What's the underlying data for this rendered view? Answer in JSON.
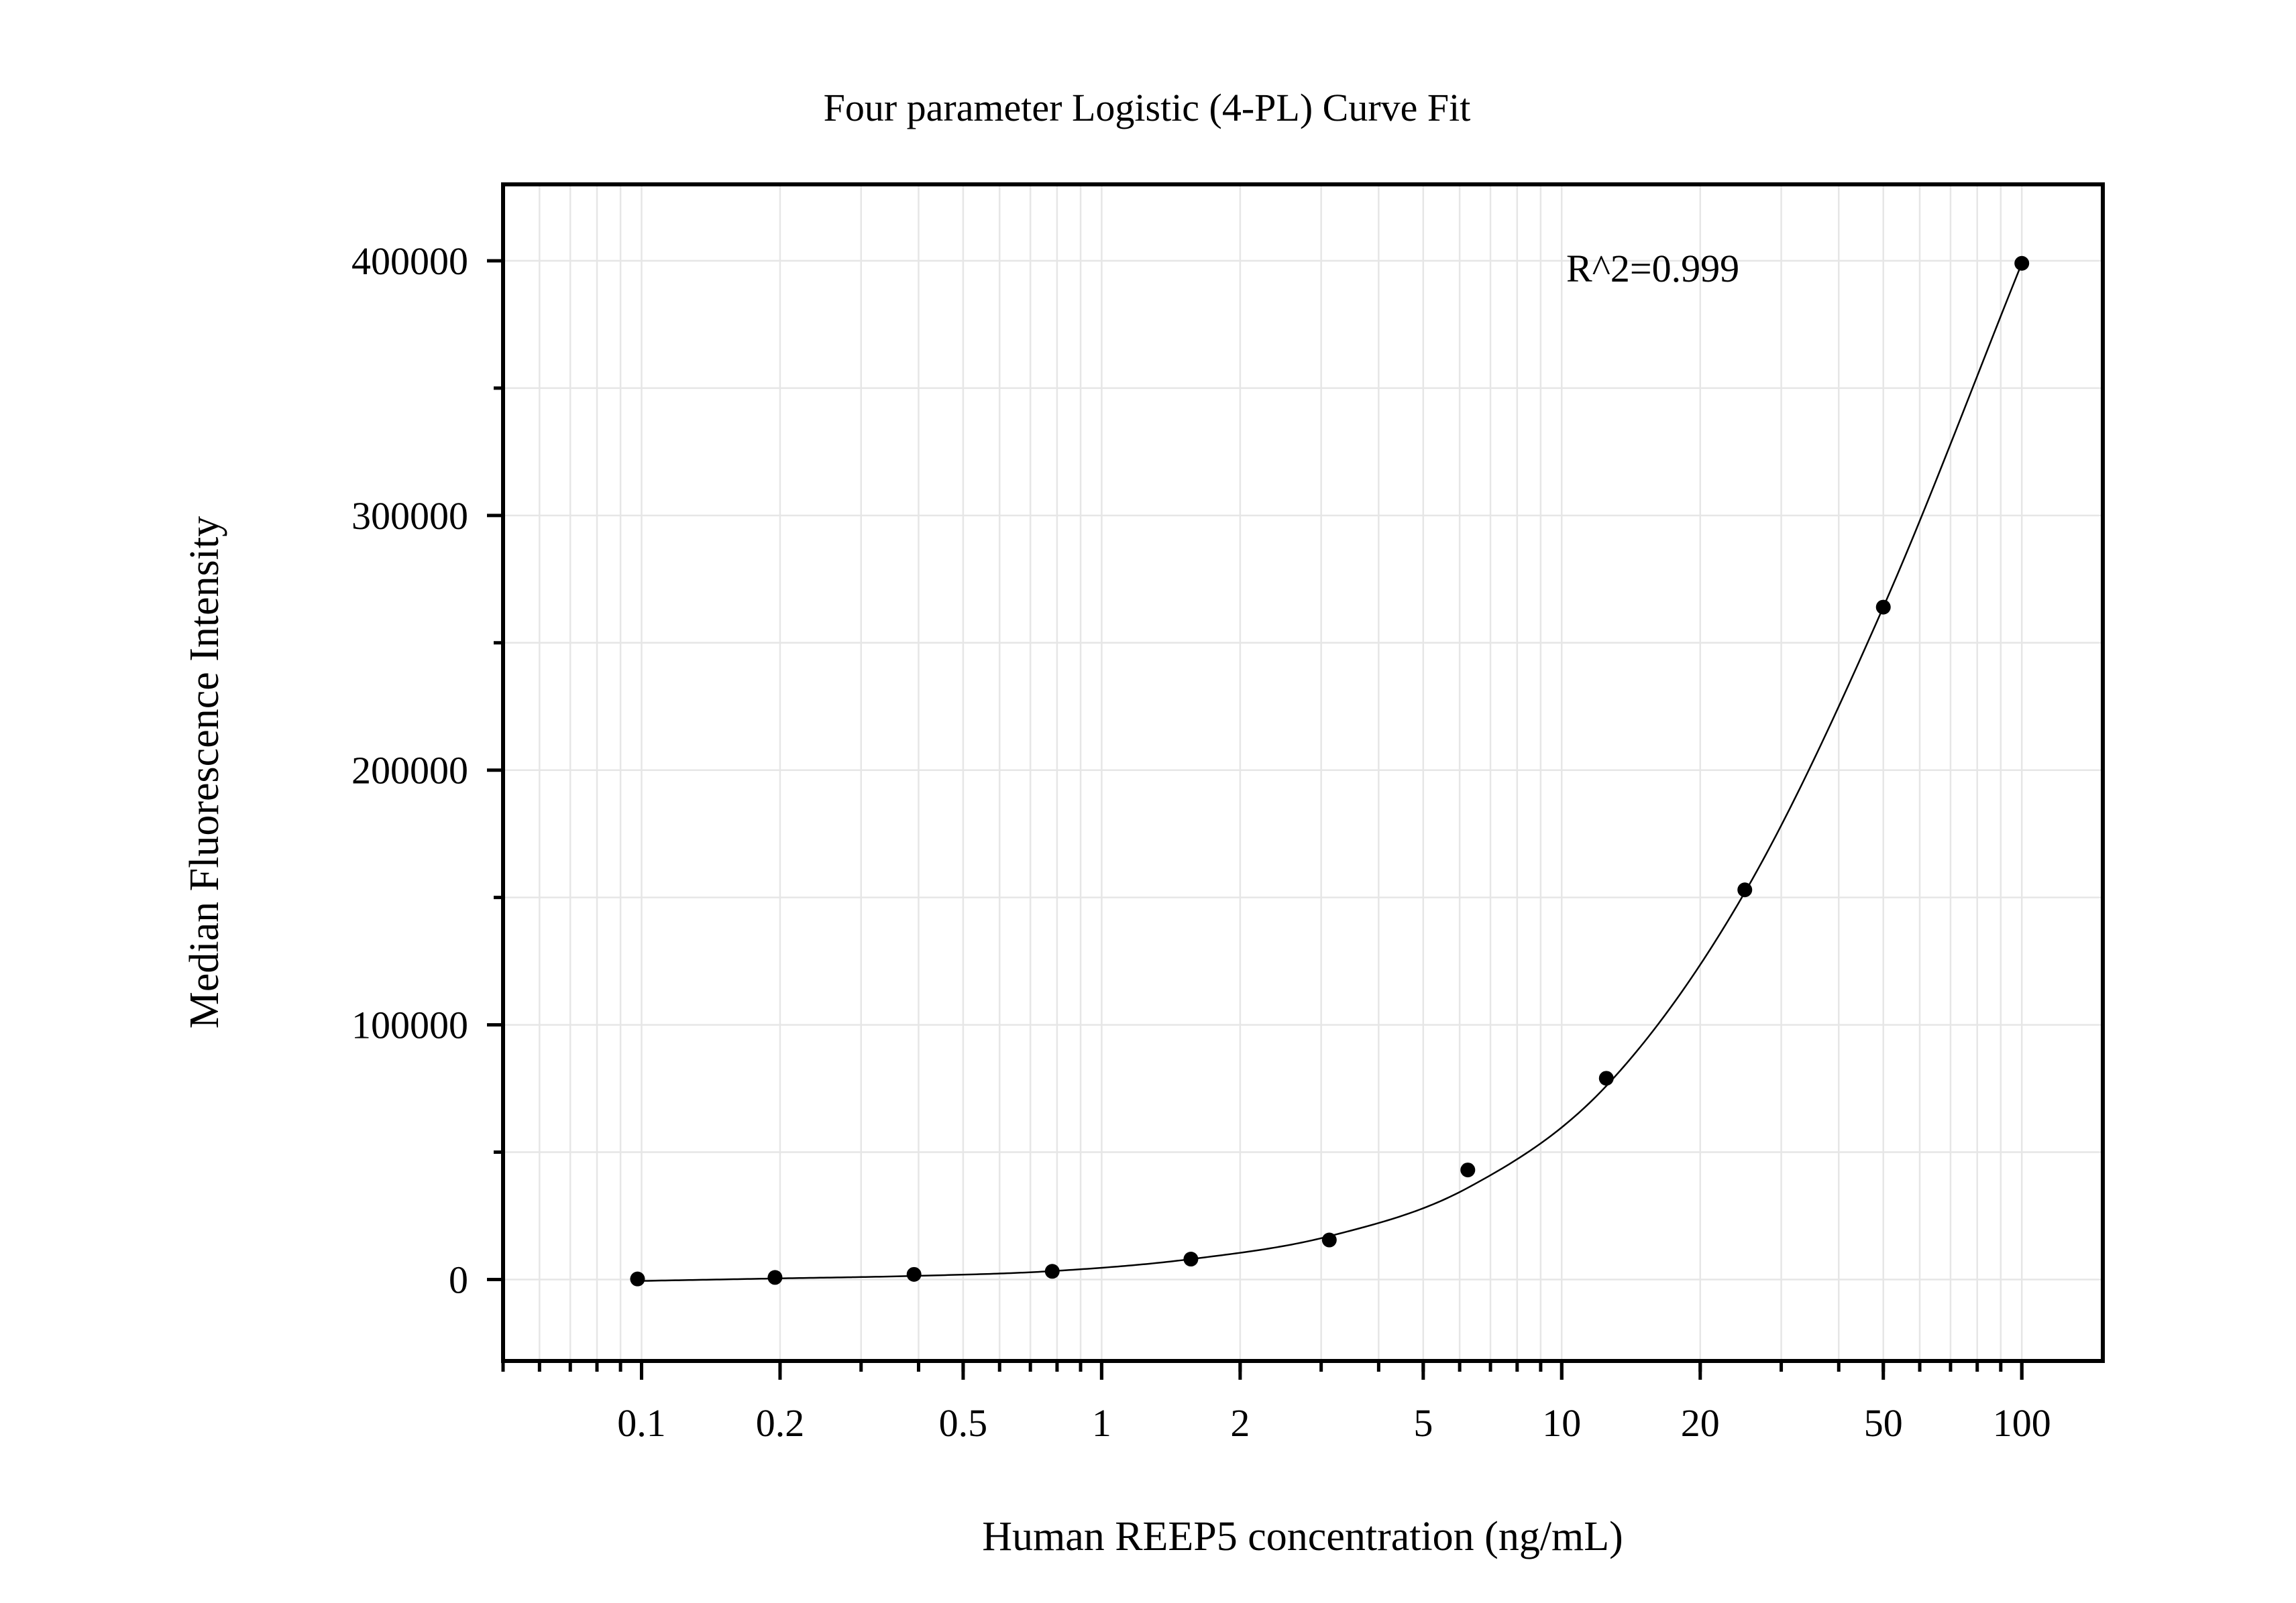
{
  "chart_data": {
    "type": "scatter",
    "title": "Four parameter Logistic (4-PL) Curve Fit",
    "xlabel": "Human REEP5 concentration (ng/mL)",
    "ylabel": "Median Fluorescence Intensity",
    "x_scale": "log",
    "xlim": [
      0.05,
      150
    ],
    "ylim": [
      -32000,
      430000
    ],
    "x_ticks": [
      0.1,
      0.2,
      0.5,
      1,
      2,
      5,
      10,
      20,
      50,
      100
    ],
    "x_tick_labels": [
      "0.1",
      "0.2",
      "0.5",
      "1",
      "2",
      "5",
      "10",
      "20",
      "50",
      "100"
    ],
    "y_ticks": [
      0,
      100000,
      200000,
      300000,
      400000
    ],
    "y_tick_labels": [
      "0",
      "100000",
      "200000",
      "300000",
      "400000"
    ],
    "grid": true,
    "legend": "none",
    "annotation": "R^2=0.999",
    "series": [
      {
        "x": [
          0.098,
          0.195,
          0.391,
          0.781,
          1.563,
          3.125,
          6.25,
          12.5,
          25,
          50,
          100
        ],
        "y": [
          200,
          800,
          2000,
          3200,
          8000,
          15500,
          43000,
          79000,
          153000,
          264000,
          399000
        ]
      }
    ],
    "fit": {
      "model": "4-PL",
      "x": [
        0.098,
        0.195,
        0.391,
        0.781,
        1.563,
        3.125,
        6.25,
        12.5,
        25,
        50,
        100
      ],
      "y": [
        -600,
        400,
        1400,
        3300,
        8000,
        17000,
        36000,
        76000,
        152000,
        264000,
        399000
      ]
    },
    "colors": {
      "points": "#000000",
      "curve": "#000000",
      "grid": "#e6e6e6",
      "axes": "#000000"
    }
  }
}
